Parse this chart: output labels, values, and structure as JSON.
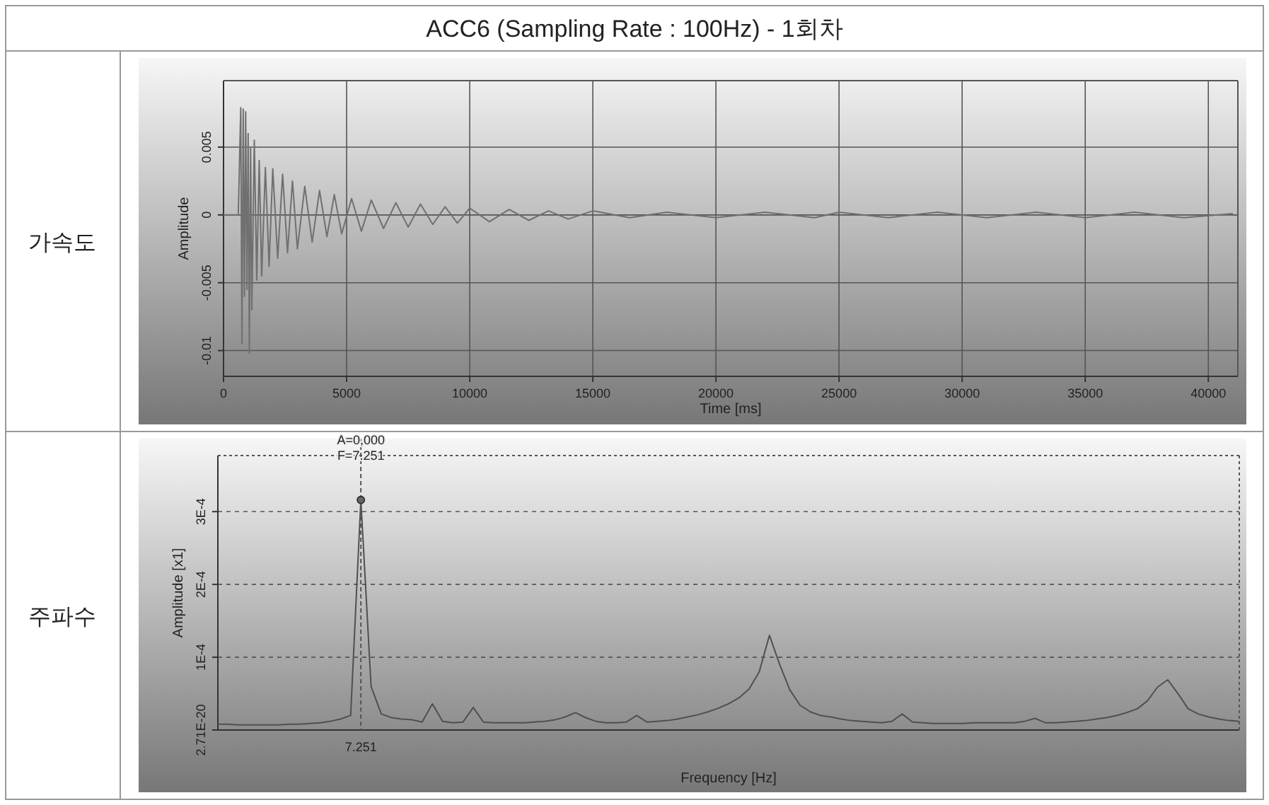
{
  "chart_data": [
    {
      "type": "line",
      "title": "ACC6 (Sampling Rate : 100Hz) - 1회차",
      "subtitle": "가속도",
      "xlabel": "Time [ms]",
      "ylabel": "Amplitude",
      "x": [
        0,
        600,
        700,
        750,
        800,
        850,
        900,
        950,
        1000,
        1050,
        1100,
        1150,
        1250,
        1350,
        1450,
        1550,
        1700,
        1850,
        2000,
        2200,
        2400,
        2600,
        2800,
        3000,
        3300,
        3600,
        3900,
        4200,
        4500,
        4800,
        5200,
        5600,
        6000,
        6500,
        7000,
        7500,
        8000,
        8500,
        9000,
        9500,
        10000,
        10800,
        11600,
        12400,
        13200,
        14000,
        15000,
        16500,
        18000,
        20000,
        22000,
        24000,
        25000,
        27000,
        29000,
        31000,
        33000,
        35000,
        37000,
        39000,
        41000
      ],
      "series": [
        {
          "color": "#707070",
          "values": [
            0,
            0,
            0.0079,
            -0.0095,
            0.0078,
            -0.006,
            0.0076,
            -0.0055,
            0.006,
            -0.0102,
            0.005,
            -0.007,
            0.0055,
            -0.0048,
            0.004,
            -0.0045,
            0.0035,
            -0.0038,
            0.0034,
            -0.0032,
            0.003,
            -0.0028,
            0.0025,
            -0.0025,
            0.0021,
            -0.002,
            0.0018,
            -0.0016,
            0.0015,
            -0.0014,
            0.0012,
            -0.0012,
            0.0011,
            -0.001,
            0.0009,
            -0.0009,
            0.0008,
            -0.0007,
            0.0006,
            -0.0006,
            0.0005,
            -0.0005,
            0.0004,
            -0.0004,
            0.0003,
            -0.0003,
            0.0003,
            -0.0002,
            0.0002,
            -0.0002,
            0.0002,
            -0.0002,
            0.0002,
            -0.0002,
            0.0002,
            -0.0002,
            0.0002,
            -0.0002,
            0.0002,
            -0.0002,
            0.0001
          ]
        }
      ],
      "xlim": [
        0,
        41200
      ],
      "xticks": [
        0,
        5000,
        10000,
        15000,
        20000,
        25000,
        30000,
        35000,
        40000
      ],
      "ylim": [
        -0.0119,
        0.0099
      ],
      "yticks": [
        -0.01,
        -0.005,
        0,
        0.005
      ],
      "grid": true,
      "line_style": "solid"
    },
    {
      "type": "line",
      "subtitle": "주파수",
      "xlabel": "Frequency [Hz]",
      "ylabel": "Amplitude [x1]",
      "categories": [
        null,
        null,
        null,
        null,
        null,
        null,
        null,
        null,
        null,
        null,
        null,
        null,
        null,
        null,
        null,
        null,
        null,
        null,
        null,
        null,
        null,
        null,
        null,
        null,
        null,
        null,
        null,
        null,
        null,
        null,
        null,
        null,
        null,
        null,
        null,
        null,
        null,
        null,
        null,
        null,
        null,
        null,
        null,
        null,
        null,
        null,
        null,
        null,
        null,
        null,
        null,
        null,
        null,
        null,
        null,
        null,
        null,
        null,
        null,
        null,
        null,
        null,
        null,
        null,
        null,
        null,
        null,
        null,
        null,
        null,
        null,
        null,
        null,
        null,
        null,
        null,
        null,
        null,
        null,
        null,
        null,
        null,
        null,
        null,
        null,
        null,
        null,
        null,
        null,
        null,
        null,
        null,
        null,
        null,
        null,
        null,
        null,
        null,
        null,
        null,
        null
      ],
      "series": [
        {
          "color": "#505050",
          "values": [
            8e-06,
            8e-06,
            7e-06,
            7e-06,
            7e-06,
            7e-06,
            7e-06,
            8e-06,
            8e-06,
            9e-06,
            1e-05,
            1.2e-05,
            1.5e-05,
            2e-05,
            0.000316,
            6e-05,
            2.2e-05,
            1.7e-05,
            1.5e-05,
            1.4e-05,
            1.1e-05,
            3.6e-05,
            1.2e-05,
            1e-05,
            1.1e-05,
            3.1e-05,
            1.1e-05,
            1e-05,
            1e-05,
            1e-05,
            1e-05,
            1.1e-05,
            1.2e-05,
            1.4e-05,
            1.8e-05,
            2.4e-05,
            1.7e-05,
            1.2e-05,
            1e-05,
            1e-05,
            1.1e-05,
            2e-05,
            1.1e-05,
            1.2e-05,
            1.3e-05,
            1.5e-05,
            1.8e-05,
            2.1e-05,
            2.5e-05,
            3e-05,
            3.6e-05,
            4.4e-05,
            5.6e-05,
            8e-05,
            0.00013,
            9e-05,
            5.5e-05,
            3.4e-05,
            2.5e-05,
            2e-05,
            1.8e-05,
            1.5e-05,
            1.3e-05,
            1.2e-05,
            1.1e-05,
            1e-05,
            1.2e-05,
            2.2e-05,
            1.1e-05,
            1e-05,
            9e-06,
            9e-06,
            9e-06,
            9e-06,
            1e-05,
            1e-05,
            1e-05,
            1e-05,
            1e-05,
            1.2e-05,
            1.6e-05,
            1e-05,
            1e-05,
            1.1e-05,
            1.2e-05,
            1.3e-05,
            1.5e-05,
            1.7e-05,
            2e-05,
            2.4e-05,
            2.9e-05,
            4e-05,
            5.9e-05,
            6.9e-05,
            5e-05,
            2.9e-05,
            2.2e-05,
            1.8e-05,
            1.5e-05,
            1.3e-05,
            1.2e-05
          ]
        }
      ],
      "ylim": [
        2.71e-20,
        0.000377
      ],
      "yticks": [
        {
          "value": 2.71e-20,
          "label": "2.71E-20"
        },
        {
          "value": 0.0001,
          "label": "1E-4"
        },
        {
          "value": 0.0002,
          "label": "2E-4"
        },
        {
          "value": 0.0003,
          "label": "3E-4"
        }
      ],
      "grid": "y",
      "line_style": "solid",
      "annotations": [
        "A=0,000",
        "F=7.251",
        "7.251"
      ]
    }
  ]
}
